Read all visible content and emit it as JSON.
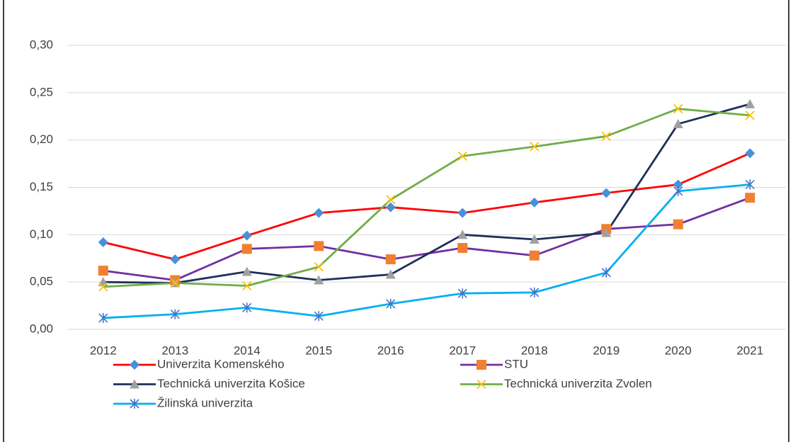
{
  "chart_data": {
    "type": "line",
    "categories": [
      "2012",
      "2013",
      "2014",
      "2015",
      "2016",
      "2017",
      "2018",
      "2019",
      "2020",
      "2021"
    ],
    "series": [
      {
        "name": "Univerzita Komenského",
        "color": "#ff0000",
        "marker": "diamond",
        "marker_color": "#4a90d9",
        "values": [
          0.092,
          0.074,
          0.099,
          0.123,
          0.129,
          0.123,
          0.134,
          0.144,
          0.153,
          0.186
        ]
      },
      {
        "name": "STU",
        "color": "#7030a0",
        "marker": "square",
        "marker_color": "#f08030",
        "values": [
          0.062,
          0.052,
          0.085,
          0.088,
          0.074,
          0.086,
          0.078,
          0.106,
          0.111,
          0.139
        ]
      },
      {
        "name": "Technická univerzita Košice",
        "color": "#1f2f5a",
        "marker": "triangle",
        "marker_color": "#a0a0a0",
        "values": [
          0.05,
          0.049,
          0.061,
          0.052,
          0.058,
          0.1,
          0.095,
          0.102,
          0.217,
          0.238
        ]
      },
      {
        "name": "Technická univerzita Zvolen",
        "color": "#70ad47",
        "marker": "x",
        "marker_color": "#ffc000",
        "values": [
          0.045,
          0.049,
          0.046,
          0.066,
          0.137,
          0.183,
          0.193,
          0.204,
          0.233,
          0.226
        ]
      },
      {
        "name": "Žilinská univerzita",
        "color": "#00b0f0",
        "marker": "asterisk",
        "marker_color": "#4472c4",
        "values": [
          0.012,
          0.016,
          0.023,
          0.014,
          0.027,
          0.038,
          0.039,
          0.06,
          0.146,
          0.153
        ]
      }
    ],
    "ylim": [
      0,
      0.3
    ],
    "yticks": [
      {
        "value": 0,
        "label": "0,00"
      },
      {
        "value": 0.05,
        "label": "0,05"
      },
      {
        "value": 0.1,
        "label": "0,10"
      },
      {
        "value": 0.15,
        "label": "0,15"
      },
      {
        "value": 0.2,
        "label": "0,20"
      },
      {
        "value": 0.25,
        "label": "0,25"
      },
      {
        "value": 0.3,
        "label": "0,30"
      }
    ],
    "grid": true,
    "legend": "bottom"
  }
}
